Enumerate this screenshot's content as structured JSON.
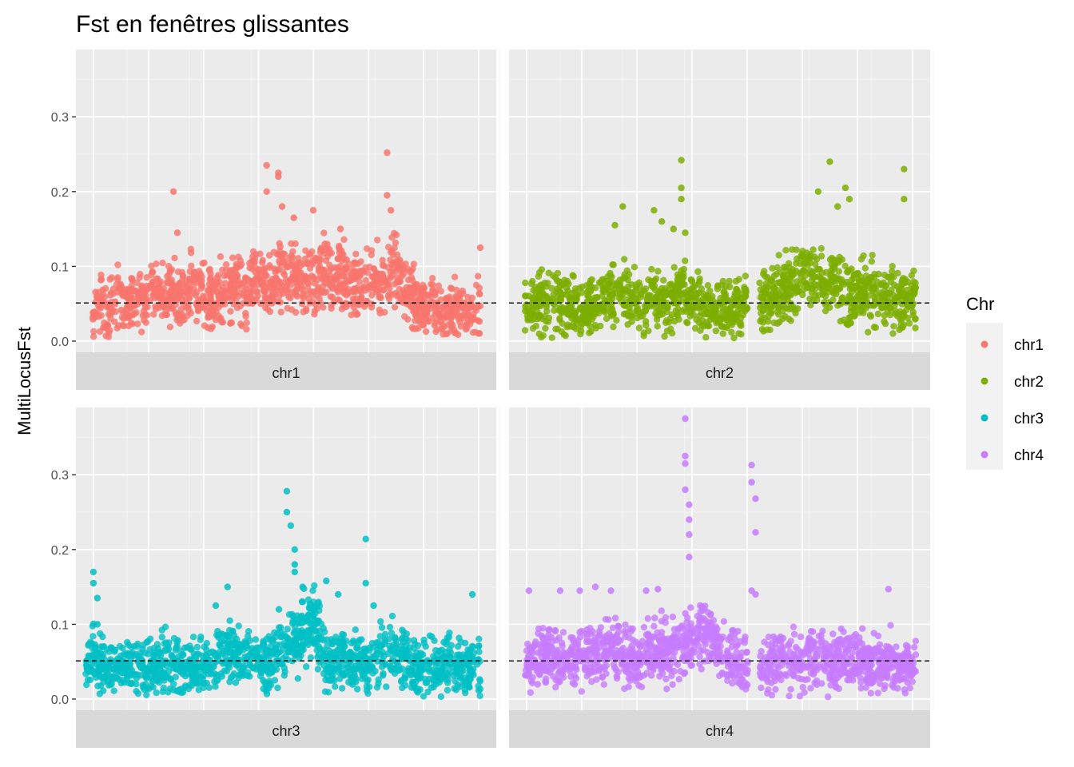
{
  "chart_data": {
    "type": "scatter",
    "title": "Fst en fenêtres glissantes",
    "xlabel": "",
    "ylabel": "MultiLocusFst",
    "ylim": [
      -0.015,
      0.39
    ],
    "yticks": [
      0.0,
      0.1,
      0.2,
      0.3
    ],
    "ytick_labels": [
      "0.0",
      "0.1",
      "0.2",
      "0.3"
    ],
    "threshold": 0.051,
    "threshold_style": "dashed",
    "grid": true,
    "legend": {
      "title": "Chr",
      "placement": "right",
      "entries": [
        {
          "label": "chr1",
          "color": "#F8766D"
        },
        {
          "label": "chr2",
          "color": "#7CAE00"
        },
        {
          "label": "chr3",
          "color": "#00BFC4"
        },
        {
          "label": "chr4",
          "color": "#C77CFF"
        }
      ]
    },
    "series": [
      {
        "name": "chr1",
        "color": "#F8766D",
        "x": [
          0.0,
          0.02,
          0.04,
          0.06,
          0.08,
          0.1,
          0.12,
          0.14,
          0.16,
          0.18,
          0.2,
          0.22,
          0.24,
          0.26,
          0.28,
          0.3,
          0.32,
          0.34,
          0.36,
          0.38,
          0.4,
          0.42,
          0.44,
          0.46,
          0.48,
          0.5,
          0.52,
          0.54,
          0.56,
          0.58,
          0.6,
          0.62,
          0.64,
          0.66,
          0.68,
          0.7,
          0.72,
          0.74,
          0.76,
          0.78,
          0.8,
          0.82,
          0.84,
          0.86,
          0.88,
          0.9,
          0.92,
          0.94,
          0.96,
          0.98,
          1.0
        ],
        "y": [
          0.04,
          0.05,
          0.035,
          0.055,
          0.045,
          0.06,
          0.055,
          0.05,
          0.07,
          0.06,
          0.065,
          0.055,
          0.06,
          0.07,
          0.065,
          0.055,
          0.06,
          0.07,
          0.075,
          0.06,
          0.065,
          0.08,
          0.07,
          0.075,
          0.085,
          0.09,
          0.08,
          0.075,
          0.08,
          0.085,
          0.09,
          0.08,
          0.085,
          0.08,
          0.075,
          0.07,
          0.08,
          0.075,
          0.09,
          0.095,
          0.085,
          0.06,
          0.05,
          0.045,
          0.05,
          0.045,
          0.04,
          0.045,
          0.04,
          0.035,
          0.05
        ],
        "peaks_x": [
          0.21,
          0.22,
          0.45,
          0.45,
          0.48,
          0.48,
          0.49,
          0.52,
          0.57,
          0.6,
          0.64,
          0.76,
          0.76,
          0.77,
          1.0
        ],
        "peaks_y": [
          0.2,
          0.145,
          0.235,
          0.2,
          0.225,
          0.22,
          0.18,
          0.165,
          0.175,
          0.13,
          0.15,
          0.252,
          0.195,
          0.175,
          0.125
        ]
      },
      {
        "name": "chr2",
        "color": "#7CAE00",
        "x": [
          0.0,
          0.02,
          0.04,
          0.06,
          0.08,
          0.1,
          0.12,
          0.14,
          0.16,
          0.18,
          0.2,
          0.22,
          0.24,
          0.26,
          0.28,
          0.3,
          0.32,
          0.34,
          0.36,
          0.38,
          0.4,
          0.42,
          0.44,
          0.46,
          0.48,
          0.5,
          0.52,
          0.54,
          0.56,
          0.6,
          0.62,
          0.64,
          0.66,
          0.68,
          0.7,
          0.72,
          0.74,
          0.76,
          0.78,
          0.8,
          0.82,
          0.84,
          0.86,
          0.88,
          0.9,
          0.92,
          0.94,
          0.96,
          0.98,
          1.0
        ],
        "y": [
          0.04,
          0.045,
          0.05,
          0.055,
          0.05,
          0.045,
          0.05,
          0.04,
          0.045,
          0.05,
          0.055,
          0.06,
          0.075,
          0.06,
          0.05,
          0.045,
          0.06,
          0.055,
          0.05,
          0.065,
          0.06,
          0.055,
          0.05,
          0.045,
          0.04,
          0.05,
          0.045,
          0.05,
          0.045,
          0.055,
          0.05,
          0.06,
          0.065,
          0.07,
          0.075,
          0.085,
          0.09,
          0.08,
          0.075,
          0.07,
          0.065,
          0.06,
          0.07,
          0.065,
          0.06,
          0.055,
          0.06,
          0.05,
          0.055,
          0.05
        ],
        "peaks_x": [
          0.23,
          0.25,
          0.33,
          0.35,
          0.38,
          0.4,
          0.4,
          0.4,
          0.41,
          0.75,
          0.78,
          0.8,
          0.82,
          0.83,
          0.97,
          0.97
        ],
        "peaks_y": [
          0.155,
          0.18,
          0.175,
          0.16,
          0.15,
          0.242,
          0.205,
          0.19,
          0.145,
          0.2,
          0.24,
          0.18,
          0.205,
          0.19,
          0.23,
          0.19
        ]
      },
      {
        "name": "chr3",
        "color": "#00BFC4",
        "x": [
          0.0,
          0.02,
          0.04,
          0.06,
          0.08,
          0.1,
          0.12,
          0.14,
          0.16,
          0.18,
          0.2,
          0.22,
          0.24,
          0.26,
          0.28,
          0.3,
          0.32,
          0.34,
          0.36,
          0.38,
          0.4,
          0.42,
          0.44,
          0.46,
          0.48,
          0.5,
          0.52,
          0.54,
          0.56,
          0.58,
          0.6,
          0.62,
          0.64,
          0.66,
          0.68,
          0.7,
          0.72,
          0.74,
          0.76,
          0.78,
          0.8,
          0.82,
          0.84,
          0.86,
          0.88,
          0.9,
          0.92,
          0.94,
          0.96,
          0.98,
          1.0
        ],
        "y": [
          0.04,
          0.06,
          0.045,
          0.04,
          0.035,
          0.04,
          0.045,
          0.04,
          0.045,
          0.04,
          0.05,
          0.045,
          0.04,
          0.045,
          0.04,
          0.05,
          0.045,
          0.05,
          0.06,
          0.065,
          0.055,
          0.05,
          0.05,
          0.045,
          0.06,
          0.065,
          0.07,
          0.08,
          0.09,
          0.11,
          0.06,
          0.045,
          0.05,
          0.055,
          0.05,
          0.045,
          0.04,
          0.05,
          0.06,
          0.065,
          0.055,
          0.045,
          0.04,
          0.045,
          0.04,
          0.045,
          0.05,
          0.045,
          0.04,
          0.045,
          0.04
        ],
        "peaks_x": [
          0.02,
          0.02,
          0.03,
          0.03,
          0.33,
          0.36,
          0.49,
          0.51,
          0.51,
          0.52,
          0.53,
          0.53,
          0.53,
          0.55,
          0.55,
          0.61,
          0.64,
          0.71,
          0.71,
          0.73,
          0.98
        ],
        "peaks_y": [
          0.17,
          0.155,
          0.135,
          0.1,
          0.125,
          0.15,
          0.12,
          0.278,
          0.25,
          0.232,
          0.2,
          0.18,
          0.17,
          0.15,
          0.13,
          0.158,
          0.14,
          0.214,
          0.155,
          0.125,
          0.14
        ]
      },
      {
        "name": "chr4",
        "color": "#C77CFF",
        "x": [
          0.0,
          0.02,
          0.04,
          0.06,
          0.08,
          0.1,
          0.12,
          0.14,
          0.16,
          0.18,
          0.2,
          0.22,
          0.24,
          0.26,
          0.28,
          0.3,
          0.32,
          0.34,
          0.36,
          0.38,
          0.4,
          0.42,
          0.44,
          0.46,
          0.48,
          0.5,
          0.52,
          0.54,
          0.56,
          0.6,
          0.62,
          0.64,
          0.66,
          0.68,
          0.7,
          0.72,
          0.74,
          0.76,
          0.78,
          0.8,
          0.82,
          0.84,
          0.86,
          0.88,
          0.9,
          0.92,
          0.94,
          0.96,
          0.98,
          1.0
        ],
        "y": [
          0.045,
          0.05,
          0.055,
          0.06,
          0.055,
          0.05,
          0.06,
          0.065,
          0.055,
          0.06,
          0.065,
          0.07,
          0.06,
          0.055,
          0.05,
          0.06,
          0.065,
          0.07,
          0.06,
          0.065,
          0.07,
          0.08,
          0.085,
          0.09,
          0.07,
          0.06,
          0.055,
          0.05,
          0.045,
          0.045,
          0.04,
          0.05,
          0.055,
          0.05,
          0.045,
          0.05,
          0.055,
          0.06,
          0.05,
          0.045,
          0.05,
          0.055,
          0.05,
          0.045,
          0.05,
          0.045,
          0.05,
          0.045,
          0.04,
          0.045
        ],
        "peaks_x": [
          0.01,
          0.09,
          0.14,
          0.18,
          0.22,
          0.31,
          0.34,
          0.41,
          0.41,
          0.41,
          0.41,
          0.42,
          0.42,
          0.42,
          0.42,
          0.58,
          0.58,
          0.59,
          0.59,
          0.58,
          0.59,
          0.93
        ],
        "peaks_y": [
          0.145,
          0.145,
          0.145,
          0.15,
          0.145,
          0.145,
          0.147,
          0.375,
          0.325,
          0.315,
          0.28,
          0.26,
          0.24,
          0.22,
          0.19,
          0.313,
          0.29,
          0.268,
          0.223,
          0.145,
          0.14,
          0.147
        ]
      }
    ],
    "panels": [
      {
        "strip": "chr1"
      },
      {
        "strip": "chr2"
      },
      {
        "strip": "chr3"
      },
      {
        "strip": "chr4"
      }
    ]
  }
}
